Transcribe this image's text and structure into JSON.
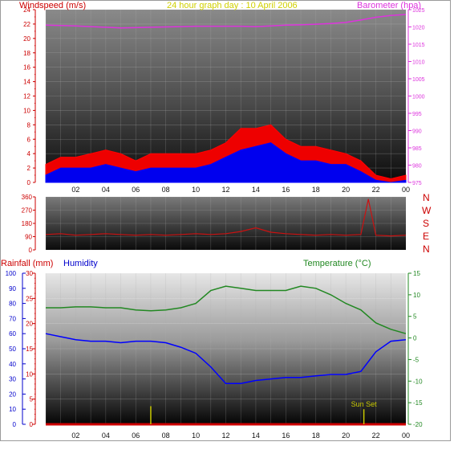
{
  "header": {
    "wind_label": "Windspeed (m/s)",
    "title": "24 hour graph day : 10 April 2006",
    "baro_label": "Barometer (hpa)"
  },
  "bottom_labels": {
    "rain": "Rainfall (mm)",
    "humidity": "Humidity",
    "temperature": "Temperature (°C)",
    "sunset": "Sun Set"
  },
  "compass": [
    "N",
    "W",
    "S",
    "E",
    "N"
  ],
  "colors": {
    "wind": "#ff0000",
    "wind_fill": "#ee0000",
    "gust_fill": "#0000ee",
    "baro": "#dd33dd",
    "direction": "#cc1111",
    "humidity": "#0000ff",
    "temperature": "#228822",
    "rain": "#cc0000",
    "sunset": "#c8c800",
    "title": "#d0d000"
  },
  "chart_data": [
    {
      "type": "area",
      "chart": "wind-and-barometer",
      "title": "24 hour graph day : 10 April 2006",
      "ylabel": "Windspeed (m/s)",
      "y2label": "Barometer (hpa)",
      "x_ticks": [
        "02",
        "04",
        "06",
        "08",
        "10",
        "12",
        "14",
        "16",
        "18",
        "20",
        "22",
        "00"
      ],
      "y_ticks": [
        0,
        2,
        4,
        6,
        8,
        10,
        12,
        14,
        16,
        18,
        20,
        22,
        24
      ],
      "y2_ticks": [
        975,
        980,
        985,
        990,
        995,
        1000,
        1005,
        1010,
        1015,
        1020,
        1025
      ],
      "ylim": [
        0,
        24
      ],
      "y2lim": [
        975,
        1025
      ],
      "xlim": [
        0,
        24
      ],
      "grid": true,
      "series": [
        {
          "name": "Windspeed (m/s)",
          "axis": "left",
          "x": [
            0,
            1,
            2,
            3,
            4,
            5,
            6,
            7,
            8,
            9,
            10,
            11,
            12,
            13,
            14,
            15,
            16,
            17,
            18,
            19,
            20,
            21,
            22,
            23,
            24
          ],
          "values": [
            2.5,
            3.5,
            3.5,
            4,
            4.5,
            4,
            3,
            4,
            4,
            4,
            4,
            4.5,
            5.5,
            7.5,
            7.5,
            8,
            6,
            5,
            5,
            4.5,
            4,
            3,
            1,
            0.5,
            1
          ]
        },
        {
          "name": "Gust",
          "axis": "left",
          "x": [
            0,
            1,
            2,
            3,
            4,
            5,
            6,
            7,
            8,
            9,
            10,
            11,
            12,
            13,
            14,
            15,
            16,
            17,
            18,
            19,
            20,
            21,
            22,
            23,
            24
          ],
          "values": [
            1,
            2,
            2,
            2,
            2.5,
            2,
            1.5,
            2,
            2,
            2,
            2,
            2.5,
            3.5,
            4.5,
            5,
            5.5,
            4,
            3,
            3,
            2.5,
            2.5,
            1.5,
            0.3,
            0,
            0.3
          ]
        },
        {
          "name": "Barometer (hpa)",
          "axis": "right",
          "x": [
            0,
            1,
            2,
            3,
            4,
            5,
            6,
            7,
            8,
            9,
            10,
            11,
            12,
            13,
            14,
            15,
            16,
            17,
            18,
            19,
            20,
            21,
            22,
            23,
            24
          ],
          "values": [
            1020.5,
            1020.4,
            1020.3,
            1020.1,
            1019.9,
            1019.7,
            1019.8,
            1019.9,
            1020,
            1020.1,
            1020.2,
            1020.2,
            1020.2,
            1020.2,
            1020.1,
            1020.3,
            1020.5,
            1020.6,
            1020.8,
            1021.0,
            1021.3,
            1022.0,
            1022.8,
            1023.3,
            1023.6
          ]
        }
      ]
    },
    {
      "type": "line",
      "chart": "wind-direction",
      "x_ticks": [
        "02",
        "04",
        "06",
        "08",
        "10",
        "12",
        "14",
        "16",
        "18",
        "20",
        "22",
        "00"
      ],
      "y_ticks": [
        0,
        90,
        180,
        270,
        360
      ],
      "ylim": [
        0,
        360
      ],
      "xlim": [
        0,
        24
      ],
      "grid": true,
      "series": [
        {
          "name": "Wind direction",
          "x": [
            0,
            1,
            2,
            3,
            4,
            5,
            6,
            7,
            8,
            9,
            10,
            11,
            12,
            13,
            14,
            15,
            16,
            17,
            18,
            19,
            20,
            21,
            21.5,
            22,
            23,
            24
          ],
          "values": [
            105,
            110,
            100,
            105,
            110,
            105,
            100,
            105,
            100,
            105,
            110,
            105,
            110,
            125,
            150,
            120,
            110,
            105,
            100,
            105,
            100,
            105,
            345,
            100,
            95,
            100
          ]
        }
      ]
    },
    {
      "type": "line",
      "chart": "rain-humidity-temperature",
      "x_ticks": [
        "02",
        "04",
        "06",
        "08",
        "10",
        "12",
        "14",
        "16",
        "18",
        "20",
        "22",
        "00"
      ],
      "humidity_ticks": [
        0,
        10,
        20,
        30,
        40,
        50,
        60,
        70,
        80,
        90,
        100
      ],
      "rain_ticks": [
        0,
        5,
        10,
        15,
        20,
        25,
        30
      ],
      "temp_ticks": [
        -20,
        -15,
        -10,
        -5,
        0,
        5,
        10,
        15
      ],
      "humidity_lim": [
        0,
        100
      ],
      "rain_lim": [
        0,
        30
      ],
      "temp_lim": [
        -20,
        15
      ],
      "xlim": [
        0,
        24
      ],
      "grid": true,
      "series": [
        {
          "name": "Humidity",
          "axis": "humidity",
          "x": [
            0,
            1,
            2,
            3,
            4,
            5,
            6,
            7,
            8,
            9,
            10,
            11,
            12,
            13,
            14,
            15,
            16,
            17,
            18,
            19,
            20,
            21,
            22,
            23,
            24
          ],
          "values": [
            60,
            58,
            56,
            55,
            55,
            54,
            55,
            55,
            54,
            51,
            47,
            38,
            27,
            27,
            29,
            30,
            31,
            31,
            32,
            33,
            33,
            35,
            48,
            55,
            56
          ]
        },
        {
          "name": "Temperature (°C)",
          "axis": "temp",
          "x": [
            0,
            1,
            2,
            3,
            4,
            5,
            6,
            7,
            8,
            9,
            10,
            11,
            12,
            13,
            14,
            15,
            16,
            17,
            18,
            19,
            20,
            21,
            22,
            23,
            24
          ],
          "values": [
            7,
            7,
            7.2,
            7.2,
            7,
            7,
            6.5,
            6.3,
            6.5,
            7,
            8,
            11,
            12,
            11.5,
            11,
            11,
            11,
            12,
            11.5,
            10,
            8,
            6.5,
            3.5,
            2,
            1
          ]
        },
        {
          "name": "Rainfall (mm)",
          "axis": "rain",
          "x": [
            0,
            24
          ],
          "values": [
            0,
            0
          ]
        }
      ],
      "markers": [
        {
          "label": "",
          "x": 7.0,
          "height_fraction": 0.12
        },
        {
          "label": "Sun Set",
          "x": 21.2,
          "height_fraction": 0.1
        }
      ]
    }
  ]
}
